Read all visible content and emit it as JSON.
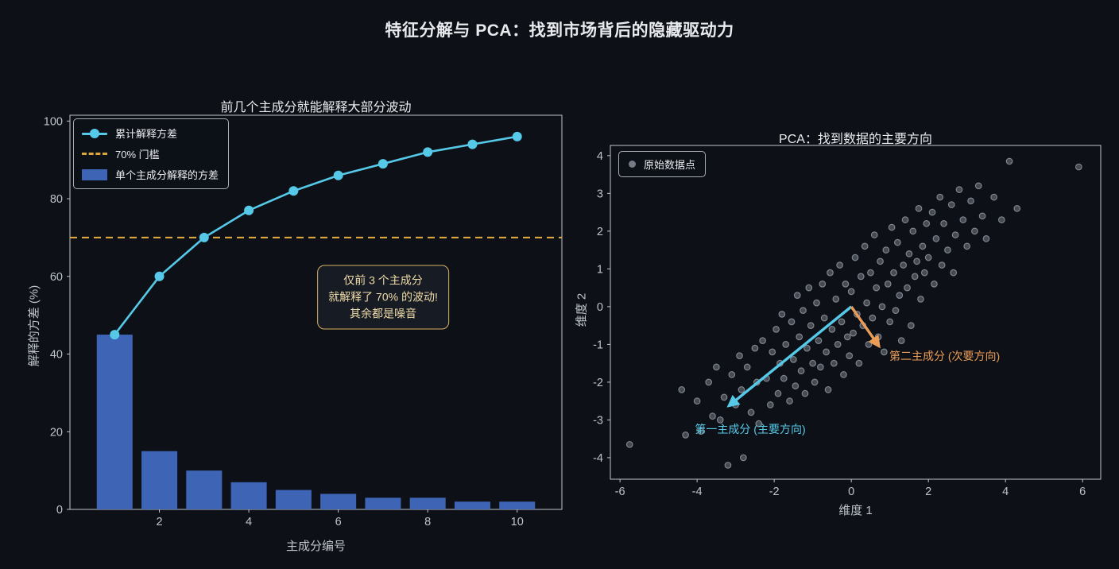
{
  "figure": {
    "title": "特征分解与 PCA：找到市场背后的隐藏驱动力"
  },
  "theme": {
    "background": "#0d1117",
    "text": "#e8eaed",
    "muted": "#bfc4cc",
    "spine": "#c0c4cb",
    "legend-bg": "rgba(13,17,23,0.85)",
    "legend-border": "#a8adb5",
    "annotation-bg": "#171b24",
    "annotation-border": "#d8b060",
    "annotation-text": "#f0dca8"
  },
  "chart_data": [
    {
      "id": "scree",
      "type": "bar",
      "title": "前几个主成分就能解释大部分波动",
      "xlabel": "主成分编号",
      "ylabel": "解释的方差 (%)",
      "categories": [
        1,
        2,
        3,
        4,
        5,
        6,
        7,
        8,
        9,
        10
      ],
      "series": [
        {
          "name": "累计解释方差",
          "kind": "line",
          "color": "#56c9e8",
          "values": [
            45,
            60,
            70,
            77,
            82,
            86,
            89,
            92,
            94,
            96
          ]
        },
        {
          "name": "70% 门槛",
          "kind": "hline",
          "color": "#dda63d",
          "value": 70,
          "style": "dashed"
        },
        {
          "name": "单个主成分解释的方差",
          "kind": "bar",
          "color": "#3e65b5",
          "values": [
            45,
            15,
            10,
            7,
            5,
            4,
            3,
            3,
            2,
            2
          ]
        }
      ],
      "xlim": [
        0,
        11
      ],
      "ylim": [
        0,
        101.5
      ],
      "xticks": [
        2,
        4,
        6,
        8,
        10
      ],
      "yticks": [
        0,
        20,
        40,
        60,
        80,
        100
      ],
      "grid": false,
      "legend_position": "upper left",
      "annotation": {
        "lines": [
          "仅前 3 个主成分",
          "就解释了 70% 的波动!",
          "其余都是噪音"
        ]
      }
    },
    {
      "id": "pca-scatter",
      "type": "scatter",
      "title": "PCA：找到数据的主要方向",
      "xlabel": "维度 1",
      "ylabel": "维度 2",
      "legend_label": "原始数据点",
      "xlim": [
        -6.25,
        6.47
      ],
      "ylim": [
        -4.57,
        4.27
      ],
      "xticks": [
        -6,
        -4,
        -2,
        0,
        2,
        4,
        6
      ],
      "yticks": [
        -4,
        -3,
        -2,
        -1,
        0,
        1,
        2,
        3,
        4
      ],
      "grid": false,
      "legend_position": "upper left",
      "point_fill": "rgba(186,192,206,0.33)",
      "point_edge": "rgba(204,209,221,0.55)",
      "points": [
        [
          -5.75,
          -3.65
        ],
        [
          -4.4,
          -2.2
        ],
        [
          -4.3,
          -3.4
        ],
        [
          -4.0,
          -2.5
        ],
        [
          -3.9,
          -3.3
        ],
        [
          -3.7,
          -2.0
        ],
        [
          -3.6,
          -2.9
        ],
        [
          -3.5,
          -1.6
        ],
        [
          -3.4,
          -3.0
        ],
        [
          -3.3,
          -2.4
        ],
        [
          -3.2,
          -4.2
        ],
        [
          -3.1,
          -1.8
        ],
        [
          -3.0,
          -2.6
        ],
        [
          -2.9,
          -1.3
        ],
        [
          -2.85,
          -2.2
        ],
        [
          -2.8,
          -4.0
        ],
        [
          -2.7,
          -1.6
        ],
        [
          -2.6,
          -2.8
        ],
        [
          -2.5,
          -1.1
        ],
        [
          -2.45,
          -2.0
        ],
        [
          -2.4,
          -3.1
        ],
        [
          -2.3,
          -0.9
        ],
        [
          -2.2,
          -1.9
        ],
        [
          -2.1,
          -2.6
        ],
        [
          -2.05,
          -1.2
        ],
        [
          -1.95,
          -0.6
        ],
        [
          -1.9,
          -2.3
        ],
        [
          -1.85,
          -1.5
        ],
        [
          -1.8,
          -0.2
        ],
        [
          -1.75,
          -1.9
        ],
        [
          -1.7,
          -1.0
        ],
        [
          -1.6,
          -2.5
        ],
        [
          -1.55,
          -0.4
        ],
        [
          -1.5,
          -1.4
        ],
        [
          -1.45,
          -2.1
        ],
        [
          -1.4,
          0.3
        ],
        [
          -1.35,
          -0.8
        ],
        [
          -1.3,
          -1.7
        ],
        [
          -1.25,
          -0.1
        ],
        [
          -1.2,
          -2.3
        ],
        [
          -1.15,
          -1.1
        ],
        [
          -1.1,
          0.5
        ],
        [
          -1.05,
          -0.5
        ],
        [
          -1.0,
          -1.5
        ],
        [
          -0.95,
          -2.0
        ],
        [
          -0.9,
          0.1
        ],
        [
          -0.85,
          -0.9
        ],
        [
          -0.8,
          -1.6
        ],
        [
          -0.75,
          0.6
        ],
        [
          -0.7,
          -0.3
        ],
        [
          -0.65,
          -1.2
        ],
        [
          -0.6,
          -2.2
        ],
        [
          -0.55,
          0.9
        ],
        [
          -0.5,
          -0.6
        ],
        [
          -0.45,
          -1.5
        ],
        [
          -0.4,
          0.2
        ],
        [
          -0.35,
          -1.0
        ],
        [
          -0.3,
          1.1
        ],
        [
          -0.25,
          -0.4
        ],
        [
          -0.2,
          -1.8
        ],
        [
          -0.15,
          0.6
        ],
        [
          -0.1,
          -0.8
        ],
        [
          -0.05,
          -1.3
        ],
        [
          0.0,
          0.4
        ],
        [
          0.05,
          -0.7
        ],
        [
          0.1,
          1.3
        ],
        [
          0.15,
          -0.2
        ],
        [
          0.2,
          -1.5
        ],
        [
          0.25,
          0.8
        ],
        [
          0.3,
          -0.5
        ],
        [
          0.35,
          1.6
        ],
        [
          0.4,
          0.1
        ],
        [
          0.45,
          -1.0
        ],
        [
          0.5,
          0.9
        ],
        [
          0.55,
          -0.3
        ],
        [
          0.6,
          1.9
        ],
        [
          0.65,
          0.5
        ],
        [
          0.7,
          -0.8
        ],
        [
          0.75,
          1.2
        ],
        [
          0.8,
          0.0
        ],
        [
          0.85,
          -1.2
        ],
        [
          0.9,
          1.5
        ],
        [
          0.95,
          0.6
        ],
        [
          1.0,
          -0.4
        ],
        [
          1.05,
          2.1
        ],
        [
          1.1,
          0.9
        ],
        [
          1.15,
          -0.1
        ],
        [
          1.2,
          1.7
        ],
        [
          1.25,
          0.3
        ],
        [
          1.3,
          -0.9
        ],
        [
          1.35,
          1.1
        ],
        [
          1.4,
          2.3
        ],
        [
          1.45,
          0.5
        ],
        [
          1.5,
          1.4
        ],
        [
          1.55,
          -0.5
        ],
        [
          1.6,
          2.0
        ],
        [
          1.65,
          0.8
        ],
        [
          1.7,
          1.2
        ],
        [
          1.75,
          2.6
        ],
        [
          1.8,
          0.2
        ],
        [
          1.85,
          1.6
        ],
        [
          1.9,
          0.9
        ],
        [
          1.95,
          2.2
        ],
        [
          2.0,
          1.3
        ],
        [
          2.1,
          2.5
        ],
        [
          2.15,
          0.6
        ],
        [
          2.2,
          1.8
        ],
        [
          2.3,
          2.9
        ],
        [
          2.35,
          1.1
        ],
        [
          2.4,
          2.2
        ],
        [
          2.5,
          1.5
        ],
        [
          2.6,
          2.7
        ],
        [
          2.65,
          0.9
        ],
        [
          2.7,
          1.9
        ],
        [
          2.8,
          3.1
        ],
        [
          2.9,
          2.3
        ],
        [
          3.0,
          1.6
        ],
        [
          3.1,
          2.8
        ],
        [
          3.2,
          2.0
        ],
        [
          3.3,
          3.2
        ],
        [
          3.4,
          2.4
        ],
        [
          3.5,
          1.8
        ],
        [
          3.7,
          2.9
        ],
        [
          3.9,
          2.3
        ],
        [
          4.1,
          3.85
        ],
        [
          4.3,
          2.6
        ],
        [
          5.9,
          3.7
        ]
      ],
      "arrows": [
        {
          "label": "第一主成分 (主要方向)",
          "color": "#56c9e8",
          "from": [
            0,
            0
          ],
          "to": [
            -3.18,
            -2.63
          ]
        },
        {
          "label": "第二主成分 (次要方向)",
          "color": "#eb9c56",
          "from": [
            0,
            0
          ],
          "to": [
            0.72,
            -1.05
          ]
        }
      ]
    }
  ]
}
